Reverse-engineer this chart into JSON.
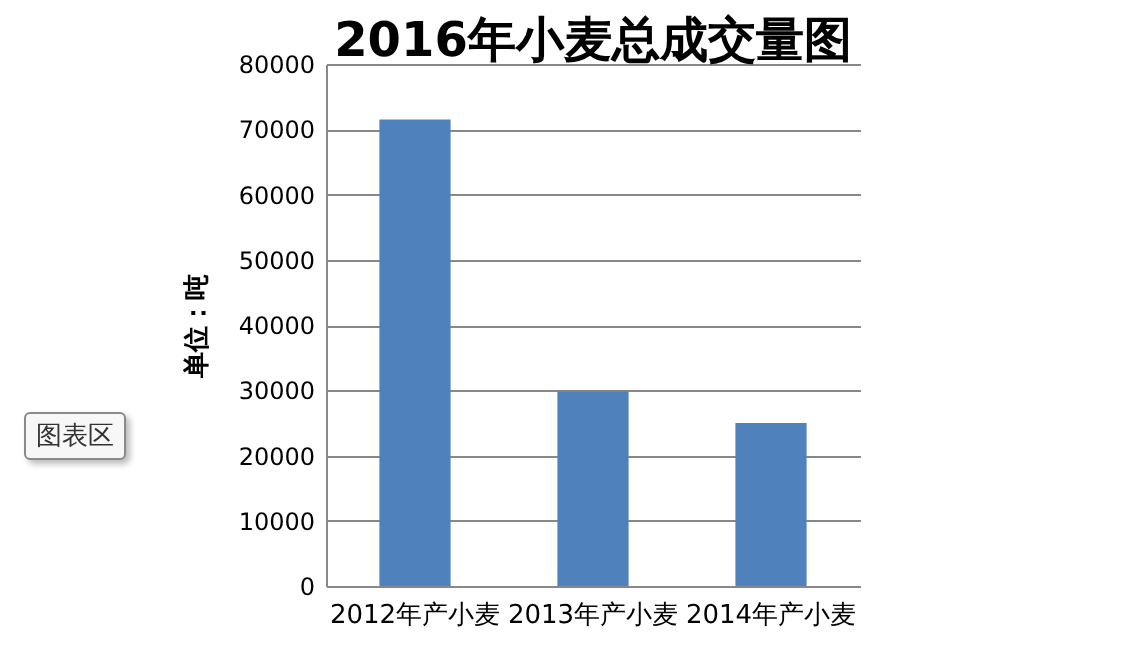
{
  "chart_data": {
    "type": "bar",
    "title": "2016年小麦总成交量图",
    "ylabel": "单位：吨",
    "categories": [
      "2012年产小麦",
      "2013年产小麦",
      "2014年产小麦"
    ],
    "values": [
      71500,
      29800,
      25000
    ],
    "color": "#4f81bd",
    "ylim": [
      0,
      80000
    ],
    "yticks": [
      0,
      10000,
      20000,
      30000,
      40000,
      50000,
      60000,
      70000,
      80000
    ],
    "grid": "y",
    "annotations": [
      "图表区"
    ]
  }
}
